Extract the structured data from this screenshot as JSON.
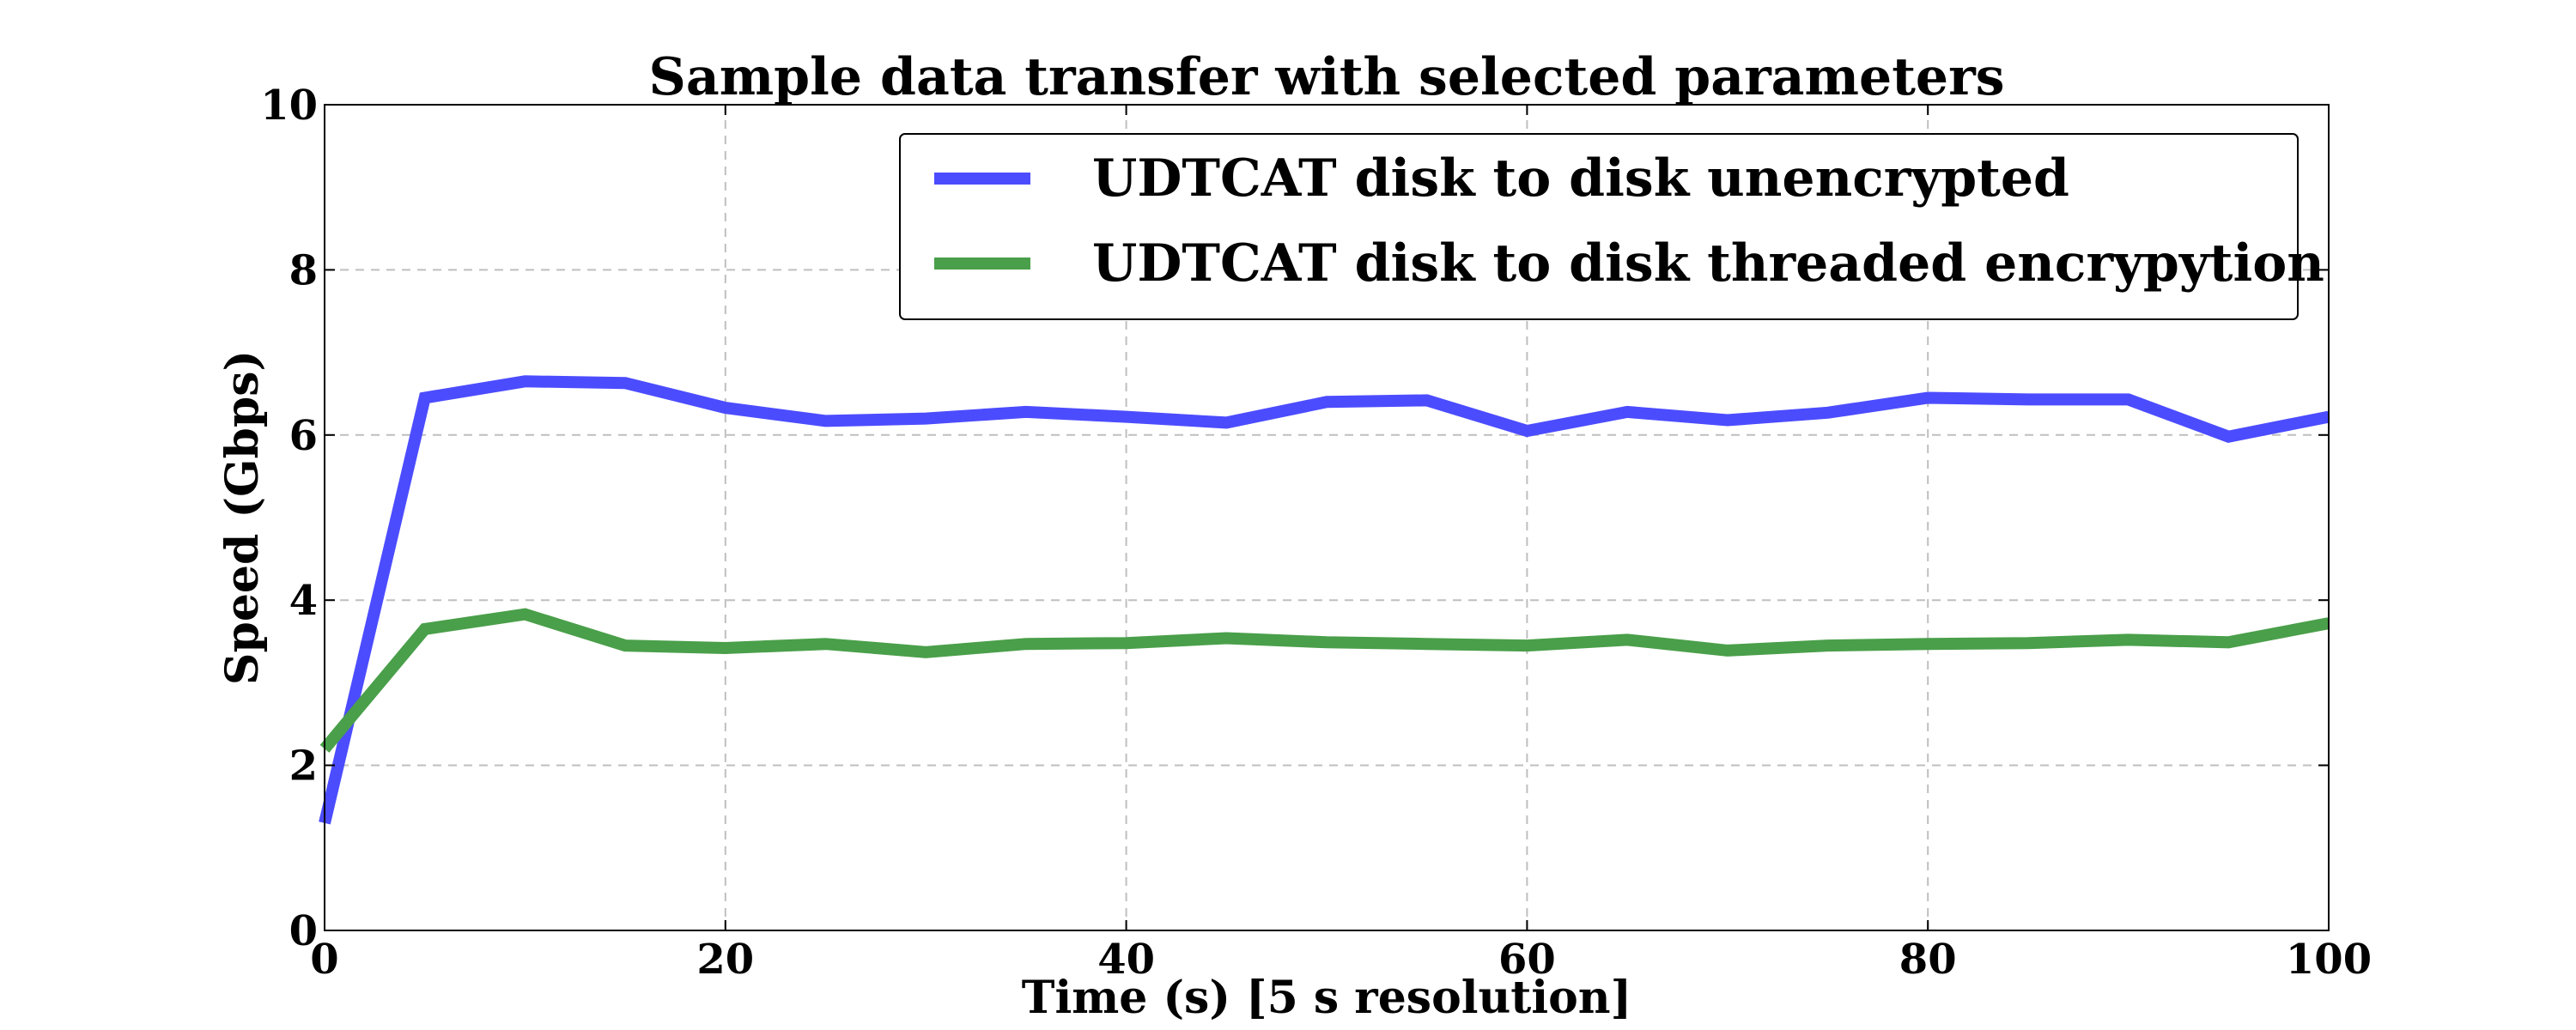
{
  "chart_data": {
    "type": "line",
    "title": "Sample data transfer with selected parameters",
    "xlabel": "Time (s) [5 s resolution]",
    "ylabel": "Speed (Gbps)",
    "xlim": [
      0,
      100
    ],
    "ylim": [
      0,
      10
    ],
    "xticks": [
      0,
      20,
      40,
      60,
      80,
      100
    ],
    "yticks": [
      0,
      2,
      4,
      6,
      8,
      10
    ],
    "grid": true,
    "legend_position": "top-right",
    "x": [
      0,
      5,
      10,
      15,
      20,
      25,
      30,
      35,
      40,
      45,
      50,
      55,
      60,
      65,
      70,
      75,
      80,
      85,
      90,
      95,
      100
    ],
    "series": [
      {
        "name": "UDTCAT disk to disk unencrypted",
        "color": "#4c4cff",
        "values": [
          1.3,
          6.45,
          6.65,
          6.63,
          6.33,
          6.17,
          6.2,
          6.28,
          6.22,
          6.15,
          6.4,
          6.42,
          6.05,
          6.28,
          6.18,
          6.27,
          6.45,
          6.43,
          6.43,
          5.98,
          6.22
        ]
      },
      {
        "name": "UDTCAT disk to disk threaded encrypytion",
        "color": "#4a9f4a",
        "values": [
          2.2,
          3.65,
          3.83,
          3.45,
          3.42,
          3.47,
          3.37,
          3.47,
          3.48,
          3.54,
          3.49,
          3.47,
          3.45,
          3.52,
          3.39,
          3.45,
          3.47,
          3.48,
          3.52,
          3.49,
          3.72
        ]
      }
    ]
  }
}
